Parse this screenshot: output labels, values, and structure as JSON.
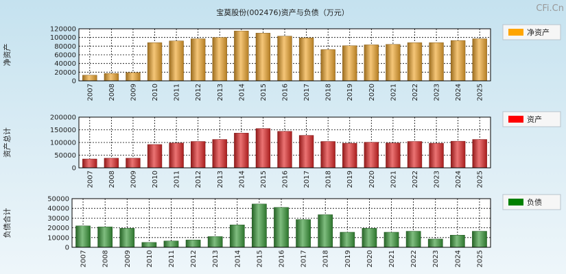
{
  "header": {
    "title": "宝莫股份(002476)资产与负债（万元）",
    "watermark": "CFi.Cn"
  },
  "chart_data": [
    {
      "type": "bar",
      "id": "net-assets",
      "ylabel": "净资产",
      "legend": "净资产",
      "color": "#f0a830",
      "legend_color": "#ffa500",
      "ylim": [
        0,
        120000
      ],
      "ticks": [
        "0",
        "20000",
        "40000",
        "60000",
        "80000",
        "100000",
        "120000"
      ],
      "categories": [
        "2007",
        "2008",
        "2009",
        "2010",
        "2011",
        "2012",
        "2013",
        "2014",
        "2015",
        "2016",
        "2017",
        "2018",
        "2019",
        "2020",
        "2021",
        "2022",
        "2023",
        "2024",
        "2025"
      ],
      "values": [
        13000,
        17000,
        19000,
        88000,
        92000,
        97000,
        100000,
        115000,
        110000,
        103000,
        99000,
        72000,
        81000,
        83000,
        84000,
        88000,
        88000,
        93000,
        97000
      ]
    },
    {
      "type": "bar",
      "id": "total-assets",
      "ylabel": "资产总计",
      "legend": "资产",
      "color": "#e02828",
      "legend_color": "#ff0000",
      "ylim": [
        0,
        200000
      ],
      "ticks": [
        "0",
        "50000",
        "100000",
        "150000",
        "200000"
      ],
      "categories": [
        "2007",
        "2008",
        "2009",
        "2010",
        "2011",
        "2012",
        "2013",
        "2014",
        "2015",
        "2016",
        "2017",
        "2018",
        "2019",
        "2020",
        "2021",
        "2022",
        "2023",
        "2024",
        "2025"
      ],
      "values": [
        35000,
        38000,
        38000,
        92000,
        98000,
        104000,
        112000,
        137000,
        155000,
        144000,
        128000,
        104000,
        97000,
        101000,
        98000,
        104000,
        97000,
        105000,
        112000
      ]
    },
    {
      "type": "bar",
      "id": "total-liabilities",
      "ylabel": "负债合计",
      "legend": "负债",
      "color": "#3a9a3a",
      "legend_color": "#008000",
      "ylim": [
        0,
        50000
      ],
      "ticks": [
        "0",
        "10000",
        "20000",
        "30000",
        "40000",
        "50000"
      ],
      "categories": [
        "2007",
        "2008",
        "2009",
        "2010",
        "2011",
        "2012",
        "2013",
        "2014",
        "2015",
        "2016",
        "2017",
        "2018",
        "2019",
        "2020",
        "2021",
        "2022",
        "2023",
        "2024",
        "2025"
      ],
      "values": [
        22000,
        21000,
        19500,
        5000,
        6500,
        7500,
        11000,
        23000,
        44500,
        41000,
        28500,
        33500,
        15500,
        19500,
        15500,
        16500,
        8500,
        12500,
        16500
      ]
    }
  ]
}
